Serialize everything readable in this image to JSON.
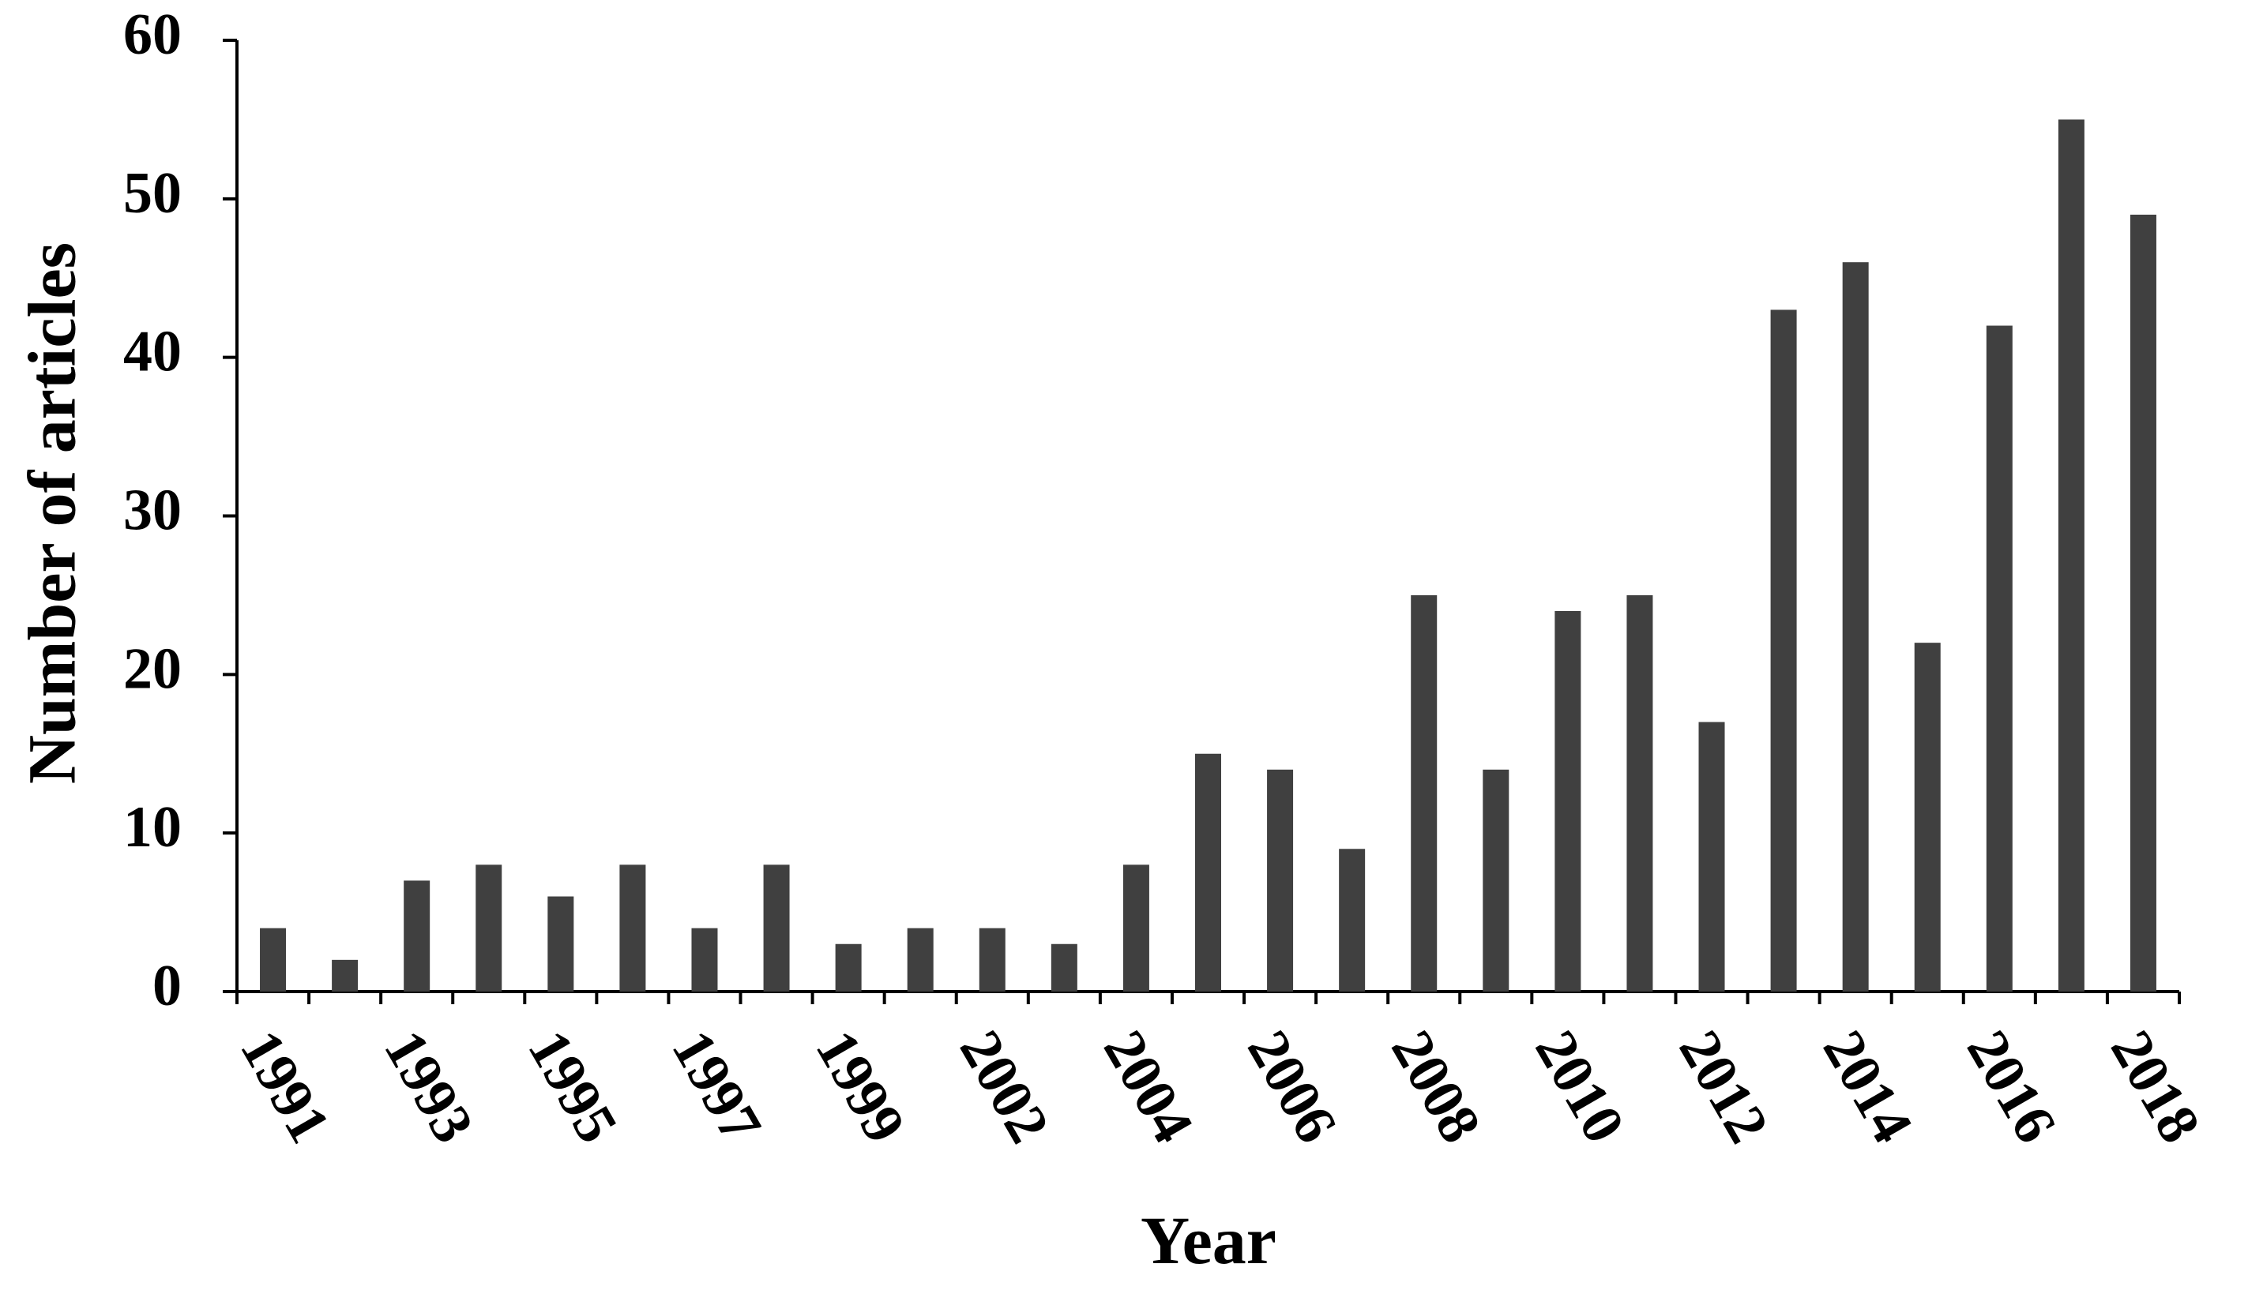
{
  "chart_data": {
    "type": "bar",
    "x_label": "Year",
    "y_label": "Number of articles",
    "categories": [
      "1991",
      null,
      "1993",
      null,
      "1995",
      null,
      "1997",
      null,
      "1999",
      null,
      "2002",
      null,
      "2004",
      null,
      "2006",
      null,
      "2008",
      null,
      "2010",
      null,
      "2012",
      null,
      "2014",
      null,
      "2016",
      null,
      "2018"
    ],
    "values": [
      4,
      2,
      7,
      8,
      6,
      8,
      4,
      8,
      3,
      4,
      4,
      3,
      8,
      15,
      14,
      9,
      25,
      14,
      24,
      25,
      17,
      43,
      46,
      22,
      42,
      55,
      49
    ],
    "color": "#404040",
    "ylim": [
      0,
      60
    ],
    "yticks": [
      0,
      10,
      20,
      30,
      40,
      50,
      60
    ],
    "grid": false
  }
}
